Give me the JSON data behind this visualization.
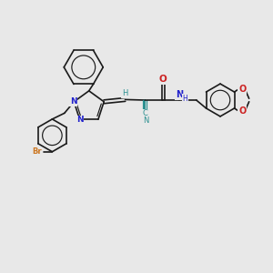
{
  "bg": "#e8e8e8",
  "bc": "#1a1a1a",
  "nc": "#2222cc",
  "oc": "#cc2222",
  "brc": "#cc7722",
  "tc": "#2a9090",
  "lw": 1.2,
  "lwi": 0.85,
  "fs": 6.5,
  "fsh": 5.5,
  "xlim": [
    0,
    10
  ],
  "ylim": [
    0,
    10
  ]
}
